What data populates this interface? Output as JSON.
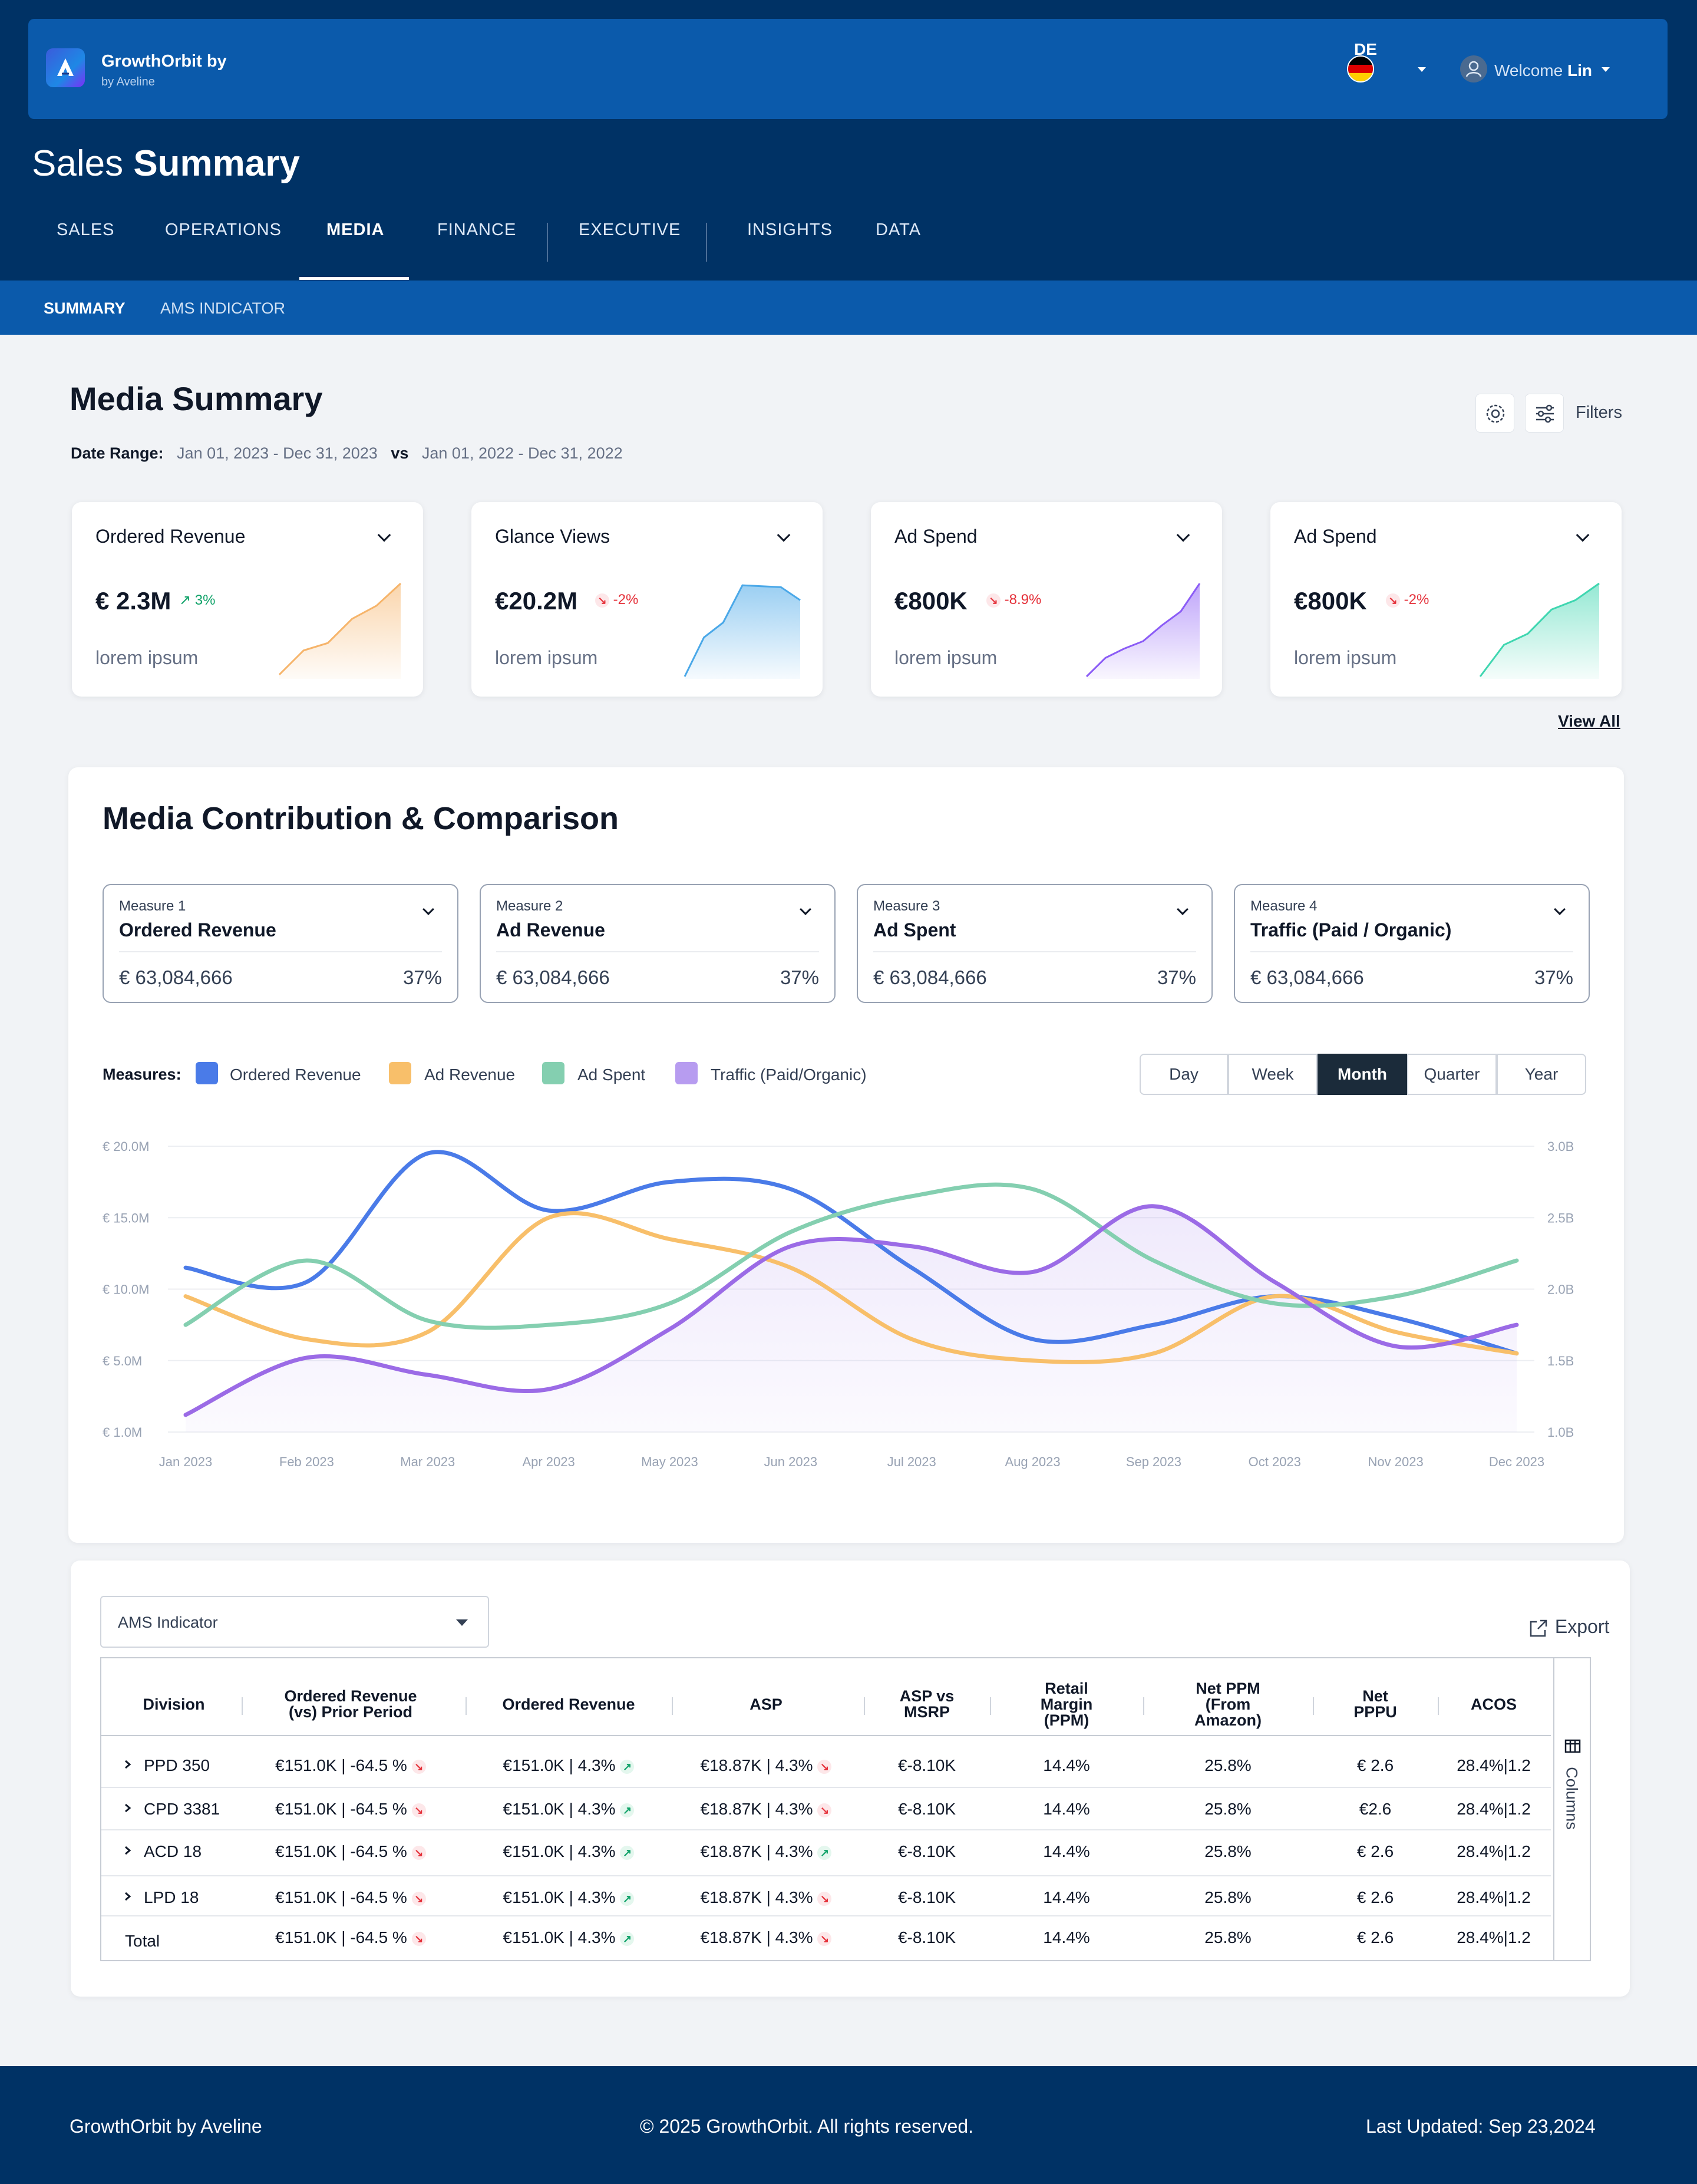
{
  "app": {
    "brand": "GrowthOrbit by",
    "brand_sub": "by Aveline",
    "lang": "DE",
    "welcome_prefix": "Welcome",
    "user": "Lin",
    "page_title_light": "Sales",
    "page_title_bold": "Summary"
  },
  "nav": {
    "tabs": [
      "SALES",
      "OPERATIONS",
      "MEDIA",
      "FINANCE",
      "EXECUTIVE",
      "INSIGHTS",
      "DATA"
    ],
    "active": "MEDIA",
    "subtabs": [
      "SUMMARY",
      "AMS INDICATOR"
    ],
    "active_sub": "SUMMARY"
  },
  "summary": {
    "title": "Media Summary",
    "date_label": "Date Range:",
    "date_current": "Jan 01, 2023 - Dec 31, 2023",
    "vs": "vs",
    "date_prior": "Jan 01, 2022 - Dec 31, 2022",
    "filters_label": "Filters",
    "view_all": "View All"
  },
  "kpis": [
    {
      "title": "Ordered Revenue",
      "value": "€ 2.3M",
      "delta": "3%",
      "trend": "up",
      "subtitle": "lorem ipsum",
      "color": "#f6b46a",
      "spark": [
        0.02,
        0.28,
        0.36,
        0.62,
        0.76,
        1.0
      ]
    },
    {
      "title": "Glance Views",
      "value": "€20.2M",
      "delta": "-2%",
      "trend": "down",
      "subtitle": "lorem ipsum",
      "color": "#4aa8e8",
      "spark": [
        0.0,
        0.42,
        0.58,
        0.98,
        0.97,
        0.96,
        0.82
      ]
    },
    {
      "title": "Ad Spend",
      "value": "€800K",
      "delta": "-8.9%",
      "trend": "down",
      "subtitle": "lorem ipsum",
      "color": "#8b5cf6",
      "spark": [
        0.0,
        0.2,
        0.3,
        0.38,
        0.55,
        0.7,
        1.0
      ]
    },
    {
      "title": "Ad Spend",
      "value": "€800K",
      "delta": "-2%",
      "trend": "down",
      "subtitle": "lorem ipsum",
      "color": "#3fd6b0",
      "spark": [
        0.0,
        0.34,
        0.46,
        0.72,
        0.82,
        1.0
      ]
    }
  ],
  "contribution": {
    "title": "Media Contribution & Comparison",
    "measures": [
      {
        "label": "Measure 1",
        "name": "Ordered Revenue",
        "value": "€ 63,084,666",
        "pct": "37%"
      },
      {
        "label": "Measure 2",
        "name": "Ad Revenue",
        "value": "€ 63,084,666",
        "pct": "37%"
      },
      {
        "label": "Measure 3",
        "name": "Ad Spent",
        "value": "€ 63,084,666",
        "pct": "37%"
      },
      {
        "label": "Measure 4",
        "name": "Traffic (Paid / Organic)",
        "value": "€ 63,084,666",
        "pct": "37%"
      }
    ],
    "legend_label": "Measures:",
    "periods": [
      "Day",
      "Week",
      "Month",
      "Quarter",
      "Year"
    ],
    "active_period": "Month"
  },
  "chart_data": {
    "type": "line",
    "x": [
      "Jan 2023",
      "Feb 2023",
      "Mar 2023",
      "Apr 2023",
      "May 2023",
      "Jun 2023",
      "Jul 2023",
      "Aug 2023",
      "Sep 2023",
      "Oct 2023",
      "Nov 2023",
      "Dec 2023"
    ],
    "yticks_left": [
      "€ 1.0M",
      "€ 5.0M",
      "€ 10.0M",
      "€ 15.0M",
      "€ 20.0M"
    ],
    "yticks_right": [
      "1.0B",
      "1.5B",
      "2.0B",
      "2.5B",
      "3.0B"
    ],
    "ylim_left": [
      0,
      20
    ],
    "ylim_right": [
      1.0,
      3.0
    ],
    "grid": true,
    "series": [
      {
        "name": "Ordered Revenue",
        "color": "#4a7be8",
        "axis": "left",
        "values": [
          11.5,
          10.5,
          19.5,
          15.5,
          17.5,
          17.0,
          11.5,
          6.5,
          7.5,
          9.5,
          8.0,
          5.5
        ]
      },
      {
        "name": "Ad Revenue",
        "color": "#f8bf6a",
        "axis": "left",
        "values": [
          9.5,
          6.5,
          7.0,
          15.0,
          13.5,
          11.5,
          6.5,
          5.0,
          5.5,
          9.5,
          7.0,
          5.5
        ]
      },
      {
        "name": "Ad Spent",
        "color": "#84cfb0",
        "axis": "left",
        "values": [
          7.5,
          12.0,
          7.8,
          7.5,
          9.0,
          14.0,
          16.5,
          17.0,
          12.0,
          9.0,
          9.5,
          12.0
        ]
      },
      {
        "name": "Traffic (Paid/Organic)",
        "color": "#9b6be6",
        "axis": "right",
        "values": [
          1.12,
          1.52,
          1.4,
          1.3,
          1.72,
          2.3,
          2.3,
          2.12,
          2.58,
          2.05,
          1.6,
          1.75
        ]
      }
    ]
  },
  "table": {
    "selector": "AMS Indicator",
    "export_label": "Export",
    "columns_label": "Columns",
    "headers": [
      "Division",
      "Ordered Revenue\n(vs) Prior Period",
      "Ordered Revenue",
      "ASP",
      "ASP vs\nMSRP",
      "Retail\nMargin\n(PPM)",
      "Net PPM\n(From\nAmazon)",
      "Net\nPPPU",
      "ACOS"
    ],
    "rows": [
      {
        "division": "PPD 350",
        "rev_prior": "€151.0K | -64.5 %",
        "rev_prior_trend": "down",
        "rev": "€151.0K | 4.3%",
        "rev_trend": "up",
        "asp": "€18.87K | 4.3%",
        "asp_trend": "down",
        "asp_msrp": "€-8.10K",
        "retail": "14.4%",
        "netppm": "25.8%",
        "pppu": "€ 2.6",
        "acos": "28.4%|1.2",
        "expand": true
      },
      {
        "division": "CPD 3381",
        "rev_prior": "€151.0K | -64.5 %",
        "rev_prior_trend": "down",
        "rev": "€151.0K | 4.3%",
        "rev_trend": "up",
        "asp": "€18.87K | 4.3%",
        "asp_trend": "down",
        "asp_msrp": "€-8.10K",
        "retail": "14.4%",
        "netppm": "25.8%",
        "pppu": "€2.6",
        "acos": "28.4%|1.2",
        "expand": true
      },
      {
        "division": "ACD 18",
        "rev_prior": "€151.0K | -64.5 %",
        "rev_prior_trend": "down",
        "rev": "€151.0K | 4.3%",
        "rev_trend": "up",
        "asp": "€18.87K | 4.3%",
        "asp_trend": "up",
        "asp_msrp": "€-8.10K",
        "retail": "14.4%",
        "netppm": "25.8%",
        "pppu": "€ 2.6",
        "acos": "28.4%|1.2",
        "expand": true
      },
      {
        "division": "LPD 18",
        "rev_prior": "€151.0K | -64.5 %",
        "rev_prior_trend": "down",
        "rev": "€151.0K | 4.3%",
        "rev_trend": "up",
        "asp": "€18.87K | 4.3%",
        "asp_trend": "down",
        "asp_msrp": "€-8.10K",
        "retail": "14.4%",
        "netppm": "25.8%",
        "pppu": "€ 2.6",
        "acos": "28.4%|1.2",
        "expand": true
      },
      {
        "division": "Total",
        "rev_prior": "€151.0K | -64.5 %",
        "rev_prior_trend": "down",
        "rev": "€151.0K | 4.3%",
        "rev_trend": "up",
        "asp": "€18.87K | 4.3%",
        "asp_trend": "down",
        "asp_msrp": "€-8.10K",
        "retail": "14.4%",
        "netppm": "25.8%",
        "pppu": "€ 2.6",
        "acos": "28.4%|1.2",
        "expand": false
      }
    ]
  },
  "footer": {
    "left": "GrowthOrbit by Aveline",
    "center": "© 2025 GrowthOrbit. All rights reserved.",
    "right": "Last Updated: Sep 23,2024"
  },
  "icons": [
    "logo-icon",
    "flag-de-icon",
    "user-icon",
    "gear-icon",
    "sliders-icon",
    "chevron-down-icon",
    "arrow-up-icon",
    "arrow-down-icon",
    "export-icon",
    "columns-icon",
    "chevron-right-icon"
  ]
}
